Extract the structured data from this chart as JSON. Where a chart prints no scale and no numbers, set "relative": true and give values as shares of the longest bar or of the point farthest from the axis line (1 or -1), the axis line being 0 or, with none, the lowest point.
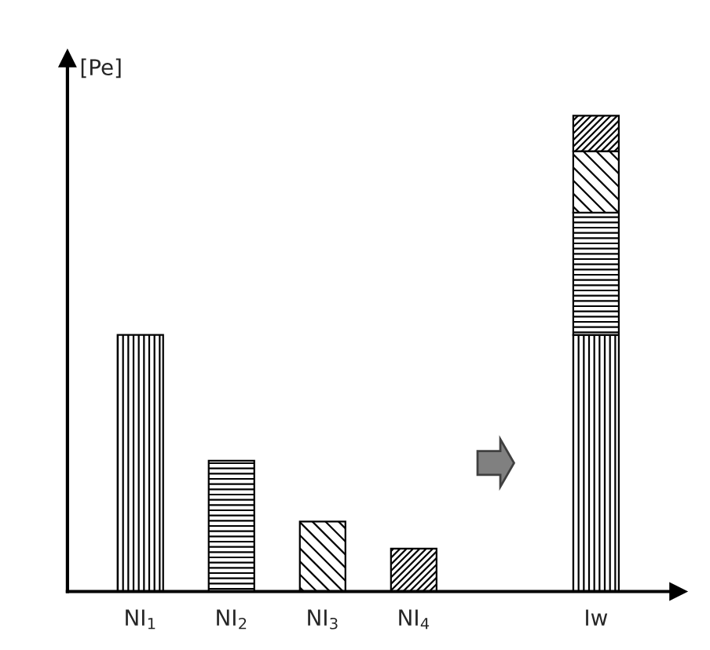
{
  "chart_data": {
    "type": "bar",
    "relative": true,
    "stacked": true,
    "ylabel": "[Pe]",
    "categories": [
      "NI$_{1}$",
      "NI$_{2}$",
      "NI$_{3}$",
      "NI$_{4}$",
      null,
      "Iw"
    ],
    "series": [
      {
        "color": "#000000",
        "values": [
          0.539,
          null,
          null,
          null,
          null,
          0.539
        ]
      },
      {
        "color": "#000000",
        "values": [
          null,
          0.275,
          null,
          null,
          null,
          0.257
        ]
      },
      {
        "color": "#000000",
        "values": [
          null,
          null,
          0.147,
          null,
          null,
          0.129
        ]
      },
      {
        "color": "#000000",
        "values": [
          null,
          null,
          null,
          0.09,
          null,
          0.075
        ]
      }
    ],
    "grid": false
  }
}
